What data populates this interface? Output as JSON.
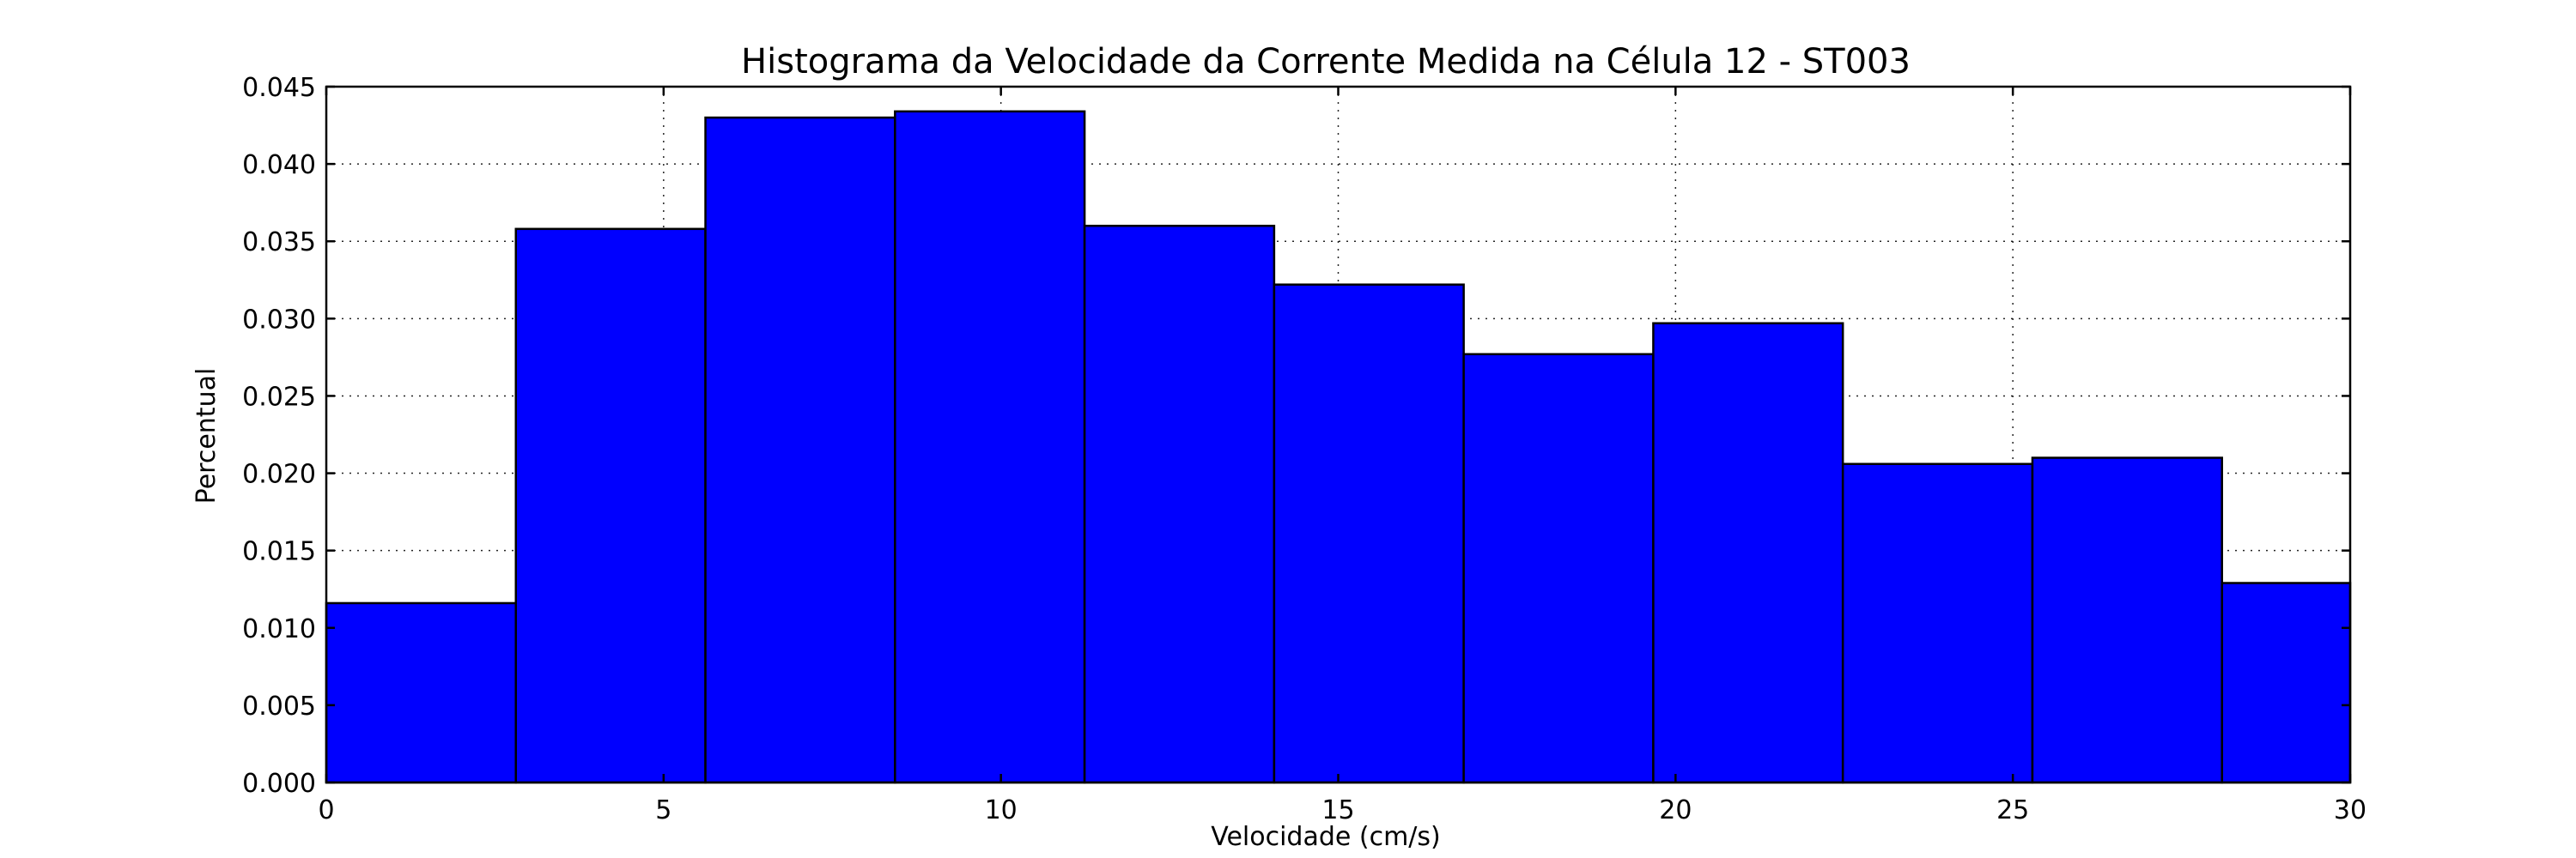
{
  "chart_data": {
    "type": "bar",
    "title": "Histograma da Velocidade da Corrente Medida na Célula 12 - ST003",
    "xlabel": "Velocidade (cm/s)",
    "ylabel": "Percentual",
    "xlim": [
      0,
      30
    ],
    "ylim": [
      0,
      0.045
    ],
    "x_ticks": [
      0,
      5,
      10,
      15,
      20,
      25,
      30
    ],
    "x_tick_labels": [
      "0",
      "5",
      "10",
      "15",
      "20",
      "25",
      "30"
    ],
    "y_ticks": [
      0,
      0.005,
      0.01,
      0.015,
      0.02,
      0.025,
      0.03,
      0.035,
      0.04,
      0.045
    ],
    "y_tick_labels": [
      "0.000",
      "0.005",
      "0.010",
      "0.015",
      "0.020",
      "0.025",
      "0.030",
      "0.035",
      "0.040",
      "0.045"
    ],
    "grid": true,
    "bar_color": "#0000ff",
    "bins": [
      {
        "start": 0.0,
        "end": 2.81,
        "value": 0.0116
      },
      {
        "start": 2.81,
        "end": 5.62,
        "value": 0.0358
      },
      {
        "start": 5.62,
        "end": 8.43,
        "value": 0.043
      },
      {
        "start": 8.43,
        "end": 11.24,
        "value": 0.0434
      },
      {
        "start": 11.24,
        "end": 14.05,
        "value": 0.036
      },
      {
        "start": 14.05,
        "end": 16.86,
        "value": 0.0322
      },
      {
        "start": 16.86,
        "end": 19.67,
        "value": 0.0277
      },
      {
        "start": 19.67,
        "end": 22.48,
        "value": 0.0297
      },
      {
        "start": 22.48,
        "end": 25.29,
        "value": 0.0206
      },
      {
        "start": 25.29,
        "end": 28.1,
        "value": 0.021
      },
      {
        "start": 28.1,
        "end": 30.0,
        "value": 0.0129
      }
    ]
  }
}
